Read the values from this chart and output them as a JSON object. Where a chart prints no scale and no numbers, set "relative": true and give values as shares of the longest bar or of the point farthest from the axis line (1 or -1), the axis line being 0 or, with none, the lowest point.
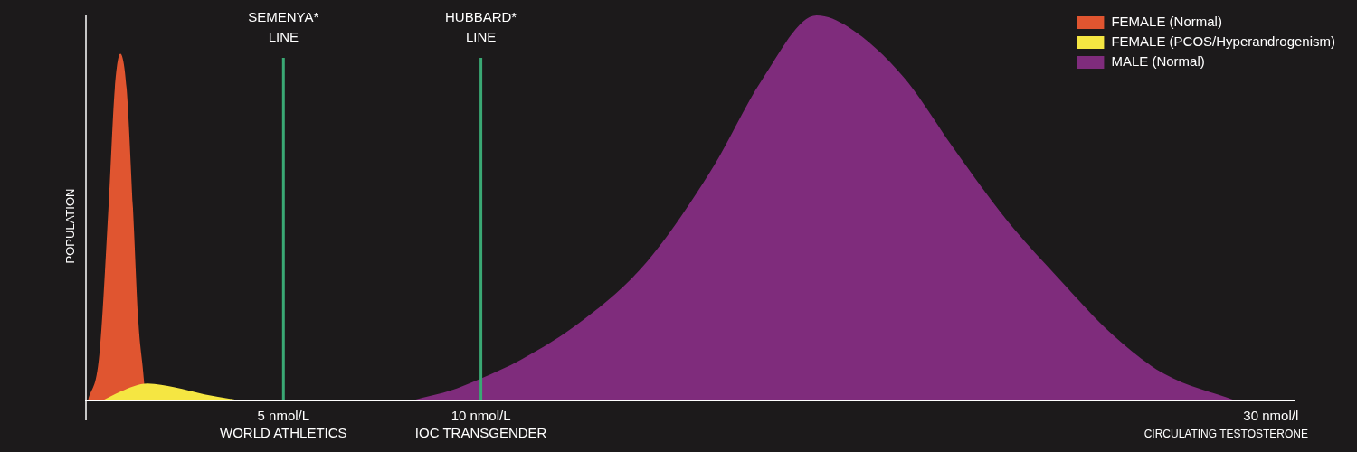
{
  "chart_data": {
    "type": "area",
    "relative": true,
    "xlabel": "CIRCULATING TESTOSTERONE",
    "ylabel": "POPULATION",
    "xlim": [
      0,
      30.6
    ],
    "xticks": [
      {
        "value": 5,
        "label": "5 nmol/L\nWORLD ATHLETICS"
      },
      {
        "value": 10,
        "label": "10 nmol/L\nIOC TRANSGENDER"
      },
      {
        "value": 30,
        "label": "30 nmol/l"
      }
    ],
    "legend": "top right",
    "grid": false,
    "ref_lines": [
      {
        "axis": "x",
        "value": 5,
        "label": "SEMENYA*\nLINE",
        "color": "#3aa874"
      },
      {
        "axis": "x",
        "value": 10,
        "label": "HUBBARD*\nLINE",
        "color": "#3aa874"
      }
    ],
    "series": [
      {
        "name": "FEMALE (Normal)",
        "color": "#e05530",
        "x": [
          0.05,
          0.34,
          0.57,
          0.73,
          0.87,
          1.03,
          1.19,
          1.33,
          1.47,
          1.5
        ],
        "values": [
          0,
          0.12,
          0.5,
          0.81,
          0.9,
          0.81,
          0.5,
          0.2,
          0.05,
          0
        ]
      },
      {
        "name": "FEMALE (PCOS/Hyperandrogenism)",
        "color": "#f5e642",
        "x": [
          0.42,
          0.87,
          1.56,
          2.25,
          3.0,
          3.9
        ],
        "values": [
          0,
          0.023,
          0.044,
          0.034,
          0.016,
          0
        ]
      },
      {
        "name": "MALE (Normal)",
        "color": "#7f2c7c",
        "x": [
          8.26,
          9.3,
          10,
          11.0,
          12.6,
          14.2,
          15.9,
          17.1,
          18.5,
          19.3,
          20.7,
          22.0,
          23.3,
          24.6,
          26.0,
          27.3,
          29.1
        ],
        "values": [
          0,
          0.028,
          0.057,
          0.105,
          0.21,
          0.36,
          0.61,
          0.83,
          1.0,
          0.97,
          0.84,
          0.65,
          0.47,
          0.32,
          0.17,
          0.069,
          0
        ]
      }
    ]
  }
}
